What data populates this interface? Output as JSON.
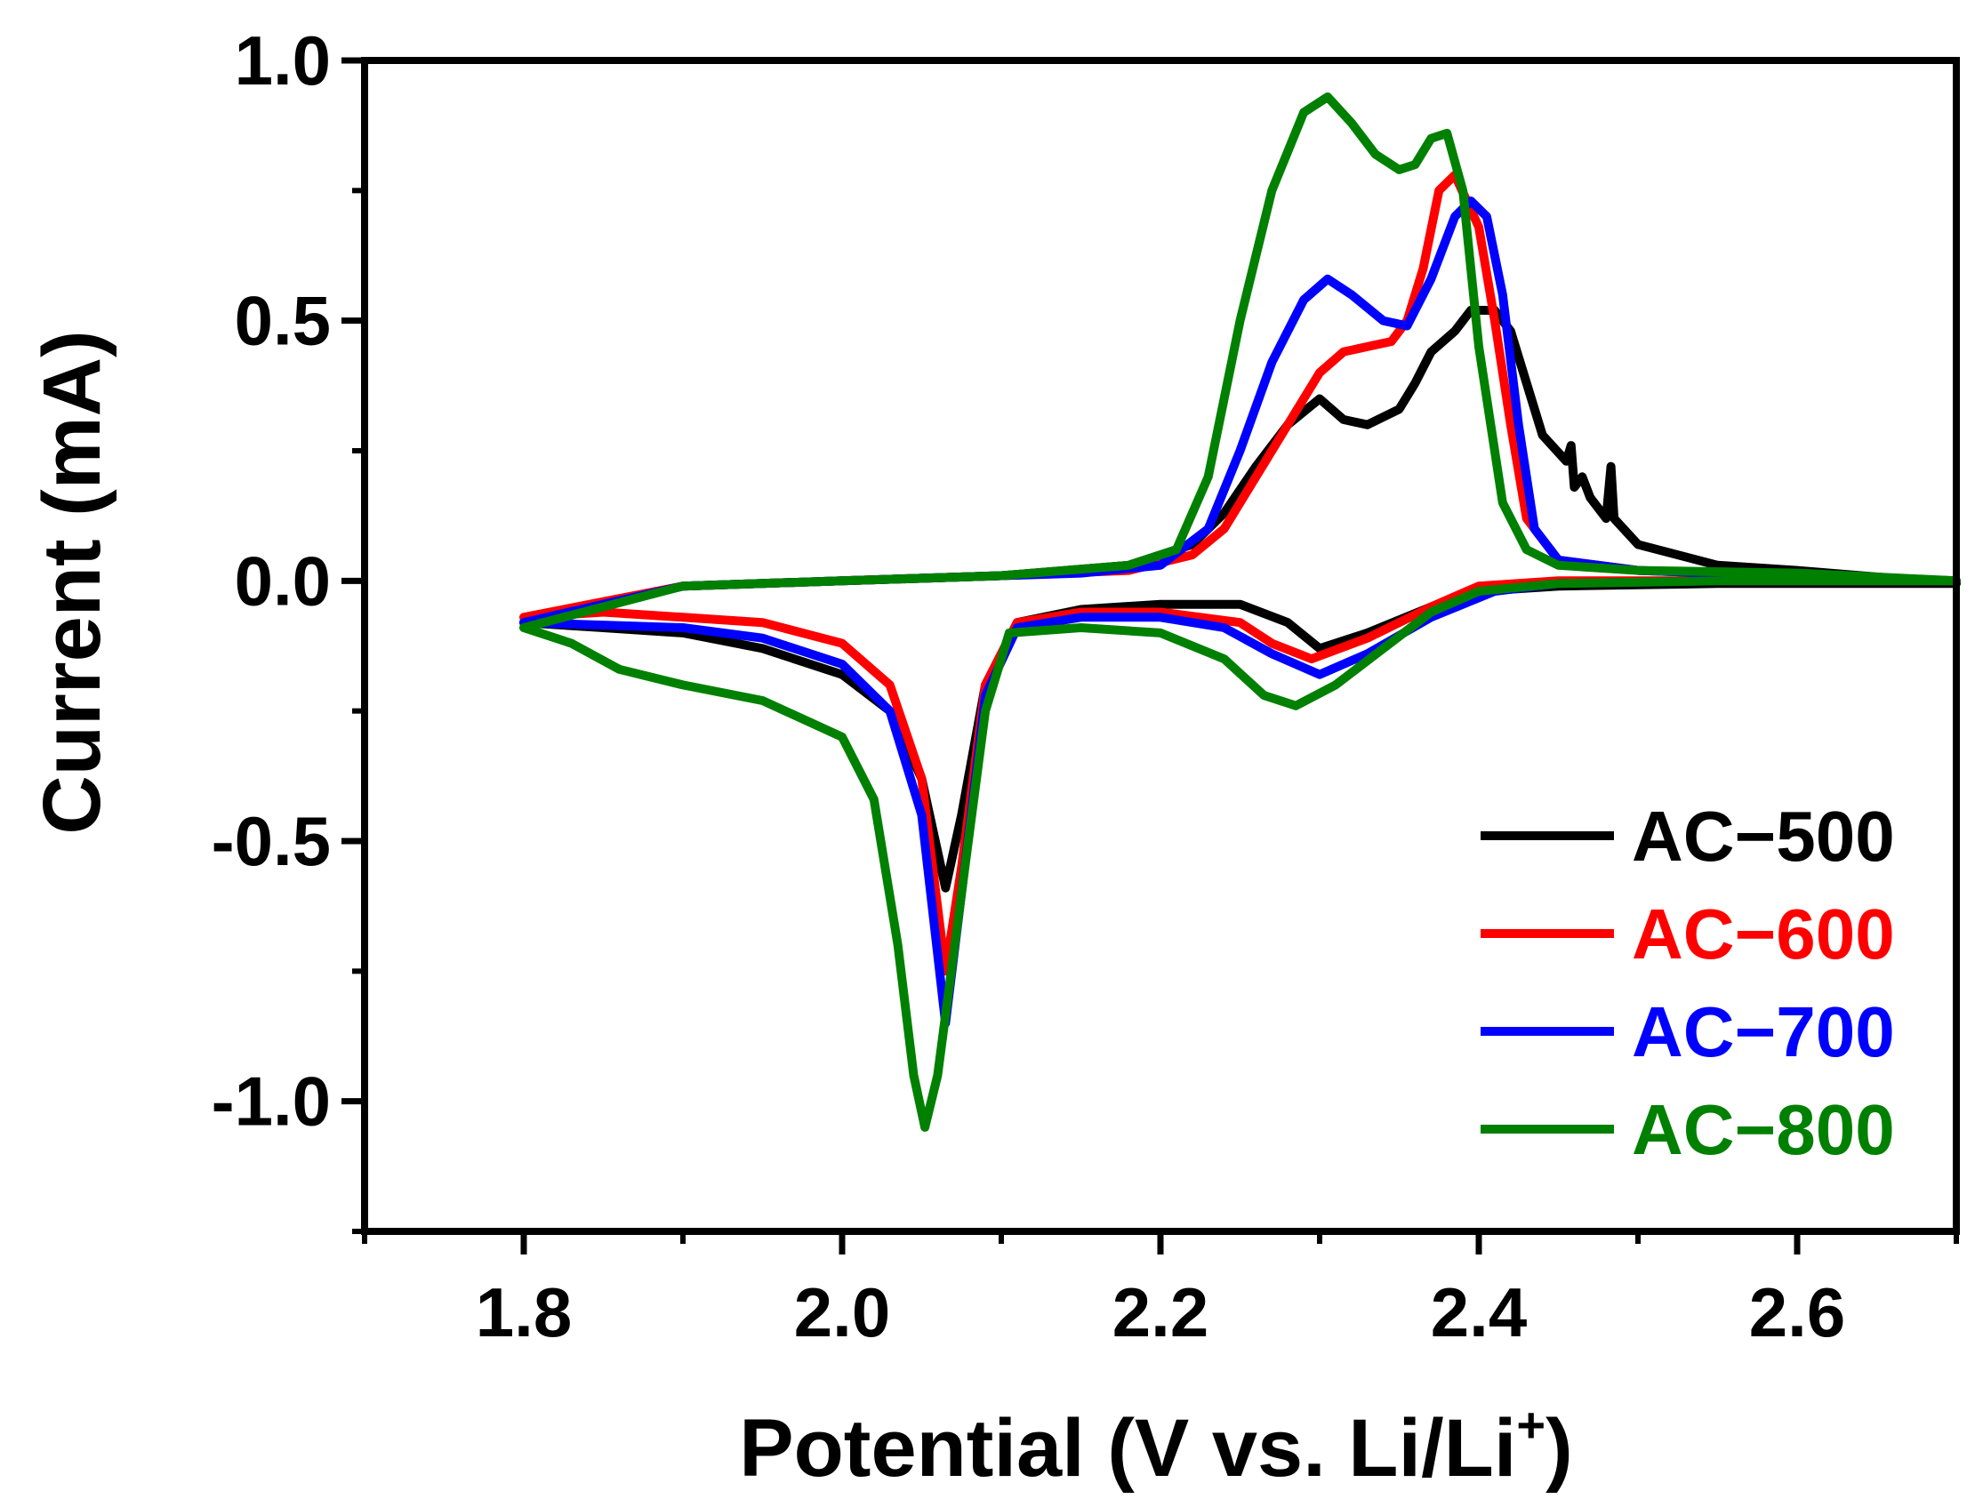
{
  "chart_data": {
    "type": "line",
    "title": "",
    "xlabel": "Potential (V vs. Li/Li+)",
    "xlabel_main": "Potential (V vs. Li/Li",
    "xlabel_sup": "+",
    "xlabel_close": ")",
    "ylabel": "Current (mA)",
    "xlim": [
      1.7,
      2.7
    ],
    "ylim": [
      -1.25,
      1.0
    ],
    "xticks": [
      1.8,
      2.0,
      2.2,
      2.4,
      2.6
    ],
    "xtick_labels": [
      "1.8",
      "2.0",
      "2.2",
      "2.4",
      "2.6"
    ],
    "yticks": [
      1.0,
      0.5,
      0.0,
      -0.5,
      -1.0
    ],
    "ytick_labels": [
      "1.0",
      "0.5",
      "0.0",
      "-0.5",
      "-1.0"
    ],
    "grid": false,
    "legend_position": "bottom-right",
    "series": [
      {
        "name": "AC−500",
        "color": "#000000",
        "points": [
          [
            1.8,
            -0.08
          ],
          [
            1.85,
            -0.09
          ],
          [
            1.9,
            -0.1
          ],
          [
            1.95,
            -0.13
          ],
          [
            2.0,
            -0.18
          ],
          [
            2.03,
            -0.25
          ],
          [
            2.05,
            -0.38
          ],
          [
            2.065,
            -0.59
          ],
          [
            2.075,
            -0.45
          ],
          [
            2.09,
            -0.2
          ],
          [
            2.11,
            -0.08
          ],
          [
            2.15,
            -0.055
          ],
          [
            2.2,
            -0.045
          ],
          [
            2.25,
            -0.045
          ],
          [
            2.28,
            -0.08
          ],
          [
            2.3,
            -0.13
          ],
          [
            2.33,
            -0.1
          ],
          [
            2.37,
            -0.05
          ],
          [
            2.4,
            -0.02
          ],
          [
            2.45,
            -0.01
          ],
          [
            2.55,
            -0.005
          ],
          [
            2.7,
            -0.005
          ],
          [
            2.6,
            0.02
          ],
          [
            2.55,
            0.03
          ],
          [
            2.5,
            0.07
          ],
          [
            2.485,
            0.12
          ],
          [
            2.483,
            0.22
          ],
          [
            2.48,
            0.12
          ],
          [
            2.47,
            0.16
          ],
          [
            2.465,
            0.2
          ],
          [
            2.46,
            0.18
          ],
          [
            2.458,
            0.26
          ],
          [
            2.455,
            0.23
          ],
          [
            2.44,
            0.28
          ],
          [
            2.43,
            0.38
          ],
          [
            2.42,
            0.48
          ],
          [
            2.41,
            0.52
          ],
          [
            2.395,
            0.52
          ],
          [
            2.385,
            0.48
          ],
          [
            2.37,
            0.44
          ],
          [
            2.36,
            0.38
          ],
          [
            2.35,
            0.33
          ],
          [
            2.33,
            0.3
          ],
          [
            2.315,
            0.31
          ],
          [
            2.3,
            0.35
          ],
          [
            2.28,
            0.3
          ],
          [
            2.26,
            0.22
          ],
          [
            2.24,
            0.13
          ],
          [
            2.22,
            0.07
          ],
          [
            2.18,
            0.03
          ],
          [
            2.1,
            0.01
          ],
          [
            2.0,
            0.0
          ],
          [
            1.9,
            -0.01
          ],
          [
            1.8,
            -0.08
          ]
        ]
      },
      {
        "name": "AC−600",
        "color": "#ff0000",
        "points": [
          [
            1.8,
            -0.07
          ],
          [
            1.85,
            -0.06
          ],
          [
            1.9,
            -0.07
          ],
          [
            1.95,
            -0.08
          ],
          [
            2.0,
            -0.12
          ],
          [
            2.03,
            -0.2
          ],
          [
            2.05,
            -0.38
          ],
          [
            2.065,
            -0.75
          ],
          [
            2.075,
            -0.55
          ],
          [
            2.09,
            -0.2
          ],
          [
            2.11,
            -0.08
          ],
          [
            2.15,
            -0.06
          ],
          [
            2.2,
            -0.06
          ],
          [
            2.25,
            -0.08
          ],
          [
            2.27,
            -0.12
          ],
          [
            2.295,
            -0.15
          ],
          [
            2.33,
            -0.11
          ],
          [
            2.37,
            -0.05
          ],
          [
            2.4,
            -0.01
          ],
          [
            2.45,
            0.0
          ],
          [
            2.55,
            0.0
          ],
          [
            2.7,
            0.0
          ],
          [
            2.6,
            0.01
          ],
          [
            2.5,
            0.02
          ],
          [
            2.45,
            0.04
          ],
          [
            2.43,
            0.12
          ],
          [
            2.42,
            0.3
          ],
          [
            2.41,
            0.5
          ],
          [
            2.4,
            0.68
          ],
          [
            2.385,
            0.78
          ],
          [
            2.375,
            0.75
          ],
          [
            2.365,
            0.6
          ],
          [
            2.355,
            0.5
          ],
          [
            2.345,
            0.46
          ],
          [
            2.33,
            0.45
          ],
          [
            2.315,
            0.44
          ],
          [
            2.3,
            0.4
          ],
          [
            2.28,
            0.3
          ],
          [
            2.26,
            0.2
          ],
          [
            2.24,
            0.1
          ],
          [
            2.22,
            0.05
          ],
          [
            2.18,
            0.02
          ],
          [
            2.1,
            0.01
          ],
          [
            2.0,
            0.0
          ],
          [
            1.9,
            -0.01
          ],
          [
            1.8,
            -0.07
          ]
        ]
      },
      {
        "name": "AC−700",
        "color": "#0000ff",
        "points": [
          [
            1.8,
            -0.08
          ],
          [
            1.85,
            -0.085
          ],
          [
            1.9,
            -0.09
          ],
          [
            1.95,
            -0.11
          ],
          [
            2.0,
            -0.16
          ],
          [
            2.03,
            -0.25
          ],
          [
            2.05,
            -0.45
          ],
          [
            2.065,
            -0.85
          ],
          [
            2.075,
            -0.6
          ],
          [
            2.09,
            -0.22
          ],
          [
            2.11,
            -0.09
          ],
          [
            2.15,
            -0.07
          ],
          [
            2.2,
            -0.07
          ],
          [
            2.24,
            -0.09
          ],
          [
            2.27,
            -0.14
          ],
          [
            2.3,
            -0.18
          ],
          [
            2.33,
            -0.14
          ],
          [
            2.37,
            -0.07
          ],
          [
            2.41,
            -0.02
          ],
          [
            2.45,
            -0.005
          ],
          [
            2.55,
            0.0
          ],
          [
            2.7,
            0.0
          ],
          [
            2.6,
            0.01
          ],
          [
            2.5,
            0.02
          ],
          [
            2.45,
            0.04
          ],
          [
            2.435,
            0.1
          ],
          [
            2.425,
            0.3
          ],
          [
            2.415,
            0.55
          ],
          [
            2.405,
            0.7
          ],
          [
            2.395,
            0.73
          ],
          [
            2.385,
            0.7
          ],
          [
            2.37,
            0.58
          ],
          [
            2.355,
            0.49
          ],
          [
            2.34,
            0.5
          ],
          [
            2.32,
            0.55
          ],
          [
            2.305,
            0.58
          ],
          [
            2.29,
            0.54
          ],
          [
            2.27,
            0.42
          ],
          [
            2.25,
            0.25
          ],
          [
            2.23,
            0.1
          ],
          [
            2.2,
            0.03
          ],
          [
            2.15,
            0.015
          ],
          [
            2.1,
            0.01
          ],
          [
            2.0,
            0.0
          ],
          [
            1.9,
            -0.01
          ],
          [
            1.8,
            -0.08
          ]
        ]
      },
      {
        "name": "AC−800",
        "color": "#008000",
        "points": [
          [
            1.8,
            -0.09
          ],
          [
            1.83,
            -0.12
          ],
          [
            1.86,
            -0.17
          ],
          [
            1.9,
            -0.2
          ],
          [
            1.95,
            -0.23
          ],
          [
            2.0,
            -0.3
          ],
          [
            2.02,
            -0.42
          ],
          [
            2.035,
            -0.7
          ],
          [
            2.045,
            -0.95
          ],
          [
            2.052,
            -1.05
          ],
          [
            2.06,
            -0.95
          ],
          [
            2.075,
            -0.6
          ],
          [
            2.09,
            -0.25
          ],
          [
            2.105,
            -0.1
          ],
          [
            2.15,
            -0.09
          ],
          [
            2.2,
            -0.1
          ],
          [
            2.24,
            -0.15
          ],
          [
            2.265,
            -0.22
          ],
          [
            2.285,
            -0.24
          ],
          [
            2.31,
            -0.2
          ],
          [
            2.34,
            -0.13
          ],
          [
            2.37,
            -0.06
          ],
          [
            2.4,
            -0.02
          ],
          [
            2.45,
            -0.005
          ],
          [
            2.55,
            0.0
          ],
          [
            2.7,
            0.0
          ],
          [
            2.6,
            0.015
          ],
          [
            2.5,
            0.02
          ],
          [
            2.45,
            0.03
          ],
          [
            2.43,
            0.06
          ],
          [
            2.415,
            0.15
          ],
          [
            2.4,
            0.45
          ],
          [
            2.39,
            0.75
          ],
          [
            2.38,
            0.86
          ],
          [
            2.37,
            0.85
          ],
          [
            2.36,
            0.8
          ],
          [
            2.35,
            0.79
          ],
          [
            2.335,
            0.82
          ],
          [
            2.32,
            0.88
          ],
          [
            2.305,
            0.93
          ],
          [
            2.29,
            0.9
          ],
          [
            2.27,
            0.75
          ],
          [
            2.25,
            0.5
          ],
          [
            2.23,
            0.2
          ],
          [
            2.21,
            0.06
          ],
          [
            2.18,
            0.03
          ],
          [
            2.1,
            0.01
          ],
          [
            2.0,
            0.0
          ],
          [
            1.9,
            -0.01
          ],
          [
            1.8,
            -0.09
          ]
        ]
      }
    ]
  }
}
